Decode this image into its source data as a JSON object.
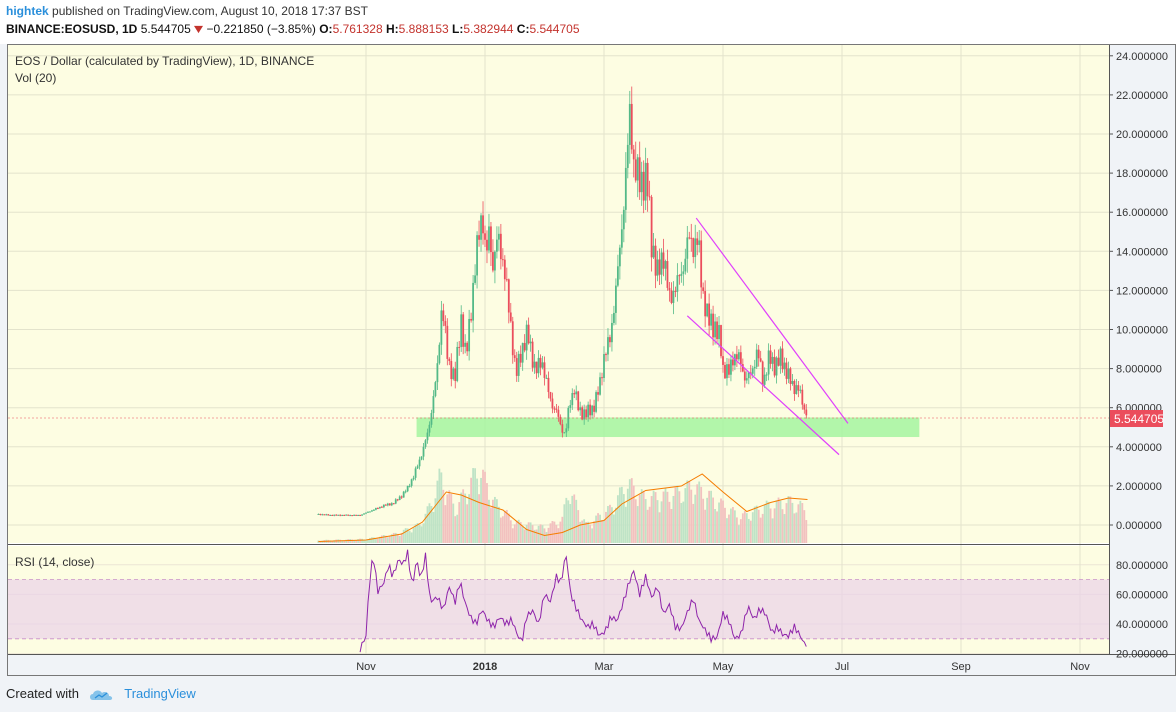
{
  "header": {
    "user": "hightek",
    "published_text": "published on TradingView.com, August 10, 2018 17:37 BST",
    "symbol": "BINANCE:EOSUSD, 1D",
    "last": "5.544705",
    "change_icon": "down-triangle-icon",
    "change": "−0.221850 (−3.85%)",
    "o_label": "O:",
    "o_value": "5.761328",
    "h_label": "H:",
    "h_value": "5.888153",
    "l_label": "L:",
    "l_value": "5.382944",
    "c_label": "C:",
    "c_value": "5.544705"
  },
  "chart_title": "EOS / Dollar (calculated by TradingView), 1D, BINANCE",
  "vol_label": "Vol (20)",
  "rsi_label": "RSI (14, close)",
  "price_tag": "5.544705",
  "footer": {
    "created_with": "Created with",
    "brand": "TradingView",
    "logo_icon": "tradingview-cloud-icon"
  },
  "colors": {
    "up": "#53b987",
    "down": "#eb4d5c",
    "band": "#a4f5a0",
    "channel": "#e040fb",
    "rsi": "#8e24aa",
    "vol_ma": "#f57c00",
    "background": "#fdfde2"
  },
  "chart_data": {
    "type": "candlestick",
    "x_ticks": [
      "Nov",
      "2018",
      "Mar",
      "May",
      "Jul",
      "Sep",
      "Nov"
    ],
    "y_ticks": [
      "24.000000",
      "22.000000",
      "20.000000",
      "18.000000",
      "16.000000",
      "14.000000",
      "12.000000",
      "10.000000",
      "8.000000",
      "6.000000",
      "4.000000",
      "2.000000",
      "0.000000"
    ],
    "rsi_ticks": [
      "80.000000",
      "60.000000",
      "40.000000",
      "20.000000"
    ],
    "ylim": [
      -0.5,
      24.5
    ],
    "rsi_lim": [
      18,
      92
    ],
    "rsi_bands": [
      30,
      70
    ],
    "support_zone": {
      "low": 4.5,
      "high": 5.5
    },
    "channel_upper": [
      [
        5.55,
        15.7
      ],
      [
        8.1,
        5.2
      ]
    ],
    "channel_lower": [
      [
        5.4,
        10.7
      ],
      [
        7.95,
        3.6
      ]
    ],
    "price_points": [
      [
        -0.8,
        0.55
      ],
      [
        -0.6,
        0.5
      ],
      [
        -0.35,
        0.5
      ],
      [
        -0.1,
        0.5
      ],
      [
        0.1,
        0.75
      ],
      [
        0.3,
        1.0
      ],
      [
        0.45,
        1.1
      ],
      [
        0.6,
        1.5
      ],
      [
        0.7,
        1.9
      ],
      [
        0.8,
        2.5
      ],
      [
        0.9,
        3.3
      ],
      [
        1.0,
        4.3
      ],
      [
        1.05,
        4.8
      ],
      [
        1.12,
        6.3
      ],
      [
        1.2,
        8.0
      ],
      [
        1.28,
        11.5
      ],
      [
        1.38,
        8.2
      ],
      [
        1.5,
        7.6
      ],
      [
        1.6,
        10.5
      ],
      [
        1.68,
        8.5
      ],
      [
        1.78,
        11.5
      ],
      [
        1.88,
        14.5
      ],
      [
        1.95,
        16.1
      ],
      [
        2.02,
        13.5
      ],
      [
        2.08,
        15.5
      ],
      [
        2.12,
        13.0
      ],
      [
        2.22,
        14.8
      ],
      [
        2.32,
        13.2
      ],
      [
        2.42,
        10.6
      ],
      [
        2.52,
        7.6
      ],
      [
        2.6,
        8.8
      ],
      [
        2.72,
        9.8
      ],
      [
        2.85,
        7.8
      ],
      [
        2.95,
        8.5
      ],
      [
        3.05,
        7.0
      ],
      [
        3.12,
        6.2
      ],
      [
        3.2,
        5.8
      ],
      [
        3.28,
        5.0
      ],
      [
        3.35,
        4.6
      ],
      [
        3.42,
        6.2
      ],
      [
        3.5,
        7.0
      ],
      [
        3.58,
        5.8
      ],
      [
        3.7,
        5.7
      ],
      [
        3.82,
        6.0
      ],
      [
        3.92,
        7.0
      ],
      [
        4.0,
        8.6
      ],
      [
        4.1,
        9.5
      ],
      [
        4.18,
        11.5
      ],
      [
        4.25,
        13.5
      ],
      [
        4.32,
        16.0
      ],
      [
        4.38,
        18.5
      ],
      [
        4.44,
        21.2
      ],
      [
        4.5,
        18.5
      ],
      [
        4.6,
        17.5
      ],
      [
        4.72,
        17.8
      ],
      [
        4.8,
        14.5
      ],
      [
        4.9,
        12.8
      ],
      [
        5.0,
        13.9
      ],
      [
        5.1,
        11.5
      ],
      [
        5.2,
        12.2
      ],
      [
        5.32,
        13.0
      ],
      [
        5.42,
        14.7
      ],
      [
        5.5,
        14.3
      ],
      [
        5.58,
        14.6
      ],
      [
        5.65,
        12.0
      ],
      [
        5.75,
        10.5
      ],
      [
        5.85,
        10.2
      ],
      [
        5.95,
        9.5
      ],
      [
        6.0,
        8.0
      ],
      [
        6.1,
        7.8
      ],
      [
        6.18,
        8.7
      ],
      [
        6.28,
        8.5
      ],
      [
        6.38,
        7.4
      ],
      [
        6.48,
        7.8
      ],
      [
        6.58,
        8.9
      ],
      [
        6.68,
        7.3
      ],
      [
        6.78,
        8.6
      ],
      [
        6.88,
        8.1
      ],
      [
        6.98,
        8.6
      ],
      [
        7.08,
        7.7
      ],
      [
        7.18,
        7.1
      ],
      [
        7.28,
        6.9
      ],
      [
        7.36,
        6.0
      ],
      [
        7.42,
        5.54
      ]
    ],
    "volume_points": [
      [
        -0.8,
        0.1
      ],
      [
        0.0,
        0.15
      ],
      [
        0.5,
        0.35
      ],
      [
        0.9,
        0.7
      ],
      [
        1.1,
        1.5
      ],
      [
        1.25,
        2.6
      ],
      [
        1.5,
        1.3
      ],
      [
        1.9,
        2.9
      ],
      [
        2.15,
        1.6
      ],
      [
        2.5,
        0.8
      ],
      [
        3.0,
        0.6
      ],
      [
        3.3,
        0.9
      ],
      [
        3.4,
        2.1
      ],
      [
        3.7,
        0.7
      ],
      [
        4.1,
        1.3
      ],
      [
        4.4,
        2.3
      ],
      [
        4.7,
        1.7
      ],
      [
        5.2,
        1.9
      ],
      [
        5.5,
        2.2
      ],
      [
        5.9,
        1.6
      ],
      [
        6.3,
        1.0
      ],
      [
        6.7,
        1.4
      ],
      [
        7.1,
        1.6
      ],
      [
        7.42,
        1.3
      ]
    ],
    "volume_ma_points": [
      [
        -0.8,
        0.05
      ],
      [
        0.0,
        0.1
      ],
      [
        0.6,
        0.3
      ],
      [
        0.95,
        0.7
      ],
      [
        1.15,
        1.2
      ],
      [
        1.35,
        1.7
      ],
      [
        1.6,
        1.6
      ],
      [
        1.9,
        1.35
      ],
      [
        2.3,
        1.1
      ],
      [
        2.7,
        0.45
      ],
      [
        3.0,
        0.25
      ],
      [
        3.3,
        0.35
      ],
      [
        3.6,
        0.6
      ],
      [
        4.0,
        0.75
      ],
      [
        4.3,
        1.3
      ],
      [
        4.7,
        1.75
      ],
      [
        5.3,
        1.9
      ],
      [
        5.65,
        2.3
      ],
      [
        6.0,
        1.7
      ],
      [
        6.4,
        1.05
      ],
      [
        6.8,
        1.35
      ],
      [
        7.1,
        1.5
      ],
      [
        7.42,
        1.45
      ]
    ],
    "rsi_points": [
      [
        -0.1,
        23
      ],
      [
        0.0,
        32
      ],
      [
        0.05,
        65
      ],
      [
        0.12,
        87
      ],
      [
        0.2,
        62
      ],
      [
        0.3,
        68
      ],
      [
        0.38,
        80
      ],
      [
        0.45,
        72
      ],
      [
        0.55,
        84
      ],
      [
        0.62,
        80
      ],
      [
        0.7,
        88
      ],
      [
        0.78,
        65
      ],
      [
        0.85,
        84
      ],
      [
        0.92,
        70
      ],
      [
        1.0,
        86
      ],
      [
        1.08,
        55
      ],
      [
        1.2,
        58
      ],
      [
        1.3,
        50
      ],
      [
        1.4,
        65
      ],
      [
        1.5,
        55
      ],
      [
        1.58,
        69
      ],
      [
        1.66,
        55
      ],
      [
        1.75,
        45
      ],
      [
        1.85,
        40
      ],
      [
        1.95,
        50
      ],
      [
        2.05,
        42
      ],
      [
        2.15,
        38
      ],
      [
        2.25,
        45
      ],
      [
        2.35,
        40
      ],
      [
        2.45,
        43
      ],
      [
        2.55,
        32
      ],
      [
        2.62,
        28
      ],
      [
        2.7,
        45
      ],
      [
        2.8,
        49
      ],
      [
        2.9,
        40
      ],
      [
        3.0,
        60
      ],
      [
        3.1,
        55
      ],
      [
        3.2,
        72
      ],
      [
        3.28,
        68
      ],
      [
        3.36,
        88
      ],
      [
        3.44,
        60
      ],
      [
        3.52,
        52
      ],
      [
        3.62,
        43
      ],
      [
        3.72,
        38
      ],
      [
        3.82,
        40
      ],
      [
        3.92,
        32
      ],
      [
        4.02,
        35
      ],
      [
        4.12,
        45
      ],
      [
        4.22,
        42
      ],
      [
        4.32,
        54
      ],
      [
        4.42,
        68
      ],
      [
        4.5,
        76
      ],
      [
        4.6,
        60
      ],
      [
        4.7,
        72
      ],
      [
        4.8,
        58
      ],
      [
        4.9,
        65
      ],
      [
        5.0,
        47
      ],
      [
        5.1,
        53
      ],
      [
        5.2,
        38
      ],
      [
        5.3,
        37
      ],
      [
        5.42,
        50
      ],
      [
        5.5,
        57
      ],
      [
        5.6,
        42
      ],
      [
        5.7,
        36
      ],
      [
        5.8,
        30
      ],
      [
        5.9,
        31
      ],
      [
        6.0,
        47
      ],
      [
        6.1,
        42
      ],
      [
        6.2,
        30
      ],
      [
        6.3,
        33
      ],
      [
        6.42,
        52
      ],
      [
        6.52,
        43
      ],
      [
        6.62,
        50
      ],
      [
        6.72,
        47
      ],
      [
        6.82,
        34
      ],
      [
        6.92,
        38
      ],
      [
        7.0,
        33
      ],
      [
        7.1,
        32
      ],
      [
        7.2,
        38
      ],
      [
        7.3,
        32
      ],
      [
        7.36,
        27
      ],
      [
        7.42,
        26
      ]
    ]
  }
}
